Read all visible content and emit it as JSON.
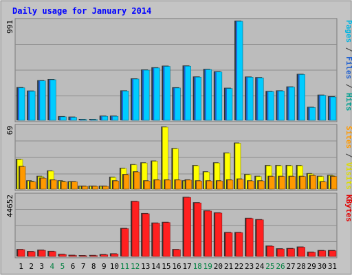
{
  "chart_data": {
    "type": "bar",
    "title": "Daily usage for January 2014",
    "categories": [
      "1",
      "2",
      "3",
      "4",
      "5",
      "6",
      "7",
      "8",
      "9",
      "10",
      "11",
      "12",
      "13",
      "14",
      "15",
      "16",
      "17",
      "18",
      "19",
      "20",
      "21",
      "22",
      "23",
      "24",
      "25",
      "26",
      "27",
      "28",
      "29",
      "30",
      "31"
    ],
    "weekend_days": [
      "4",
      "5",
      "11",
      "12",
      "18",
      "19",
      "25",
      "26"
    ],
    "panels": [
      {
        "id": "hits",
        "max_label": "991",
        "ymax": 991,
        "right_label_parts": [
          {
            "text": "Pages",
            "color": "#00b4e0"
          },
          {
            "text": " / ",
            "color": "#333333"
          },
          {
            "text": "Files",
            "color": "#2060d0"
          },
          {
            "text": " / ",
            "color": "#333333"
          },
          {
            "text": "Hits",
            "color": "#00a090"
          }
        ],
        "series": [
          {
            "name": "Hits",
            "color": "#00a090",
            "values": [
              325,
              291,
              395,
              406,
              35,
              30,
              5,
              5,
              40,
              40,
              293,
              413,
              502,
              524,
              540,
              324,
              542,
              432,
              508,
              484,
              319,
              991,
              431,
              425,
              287,
              293,
              332,
              458,
              128,
              250,
              234
            ]
          },
          {
            "name": "Files",
            "color": "#2060d0",
            "values": [
              325,
              291,
              395,
              406,
              35,
              30,
              5,
              5,
              40,
              40,
              293,
              413,
              502,
              524,
              540,
              324,
              542,
              432,
              508,
              484,
              319,
              991,
              431,
              425,
              287,
              293,
              332,
              458,
              128,
              250,
              234
            ]
          },
          {
            "name": "Pages",
            "color": "#00ccff",
            "values": [
              325,
              291,
              395,
              406,
              35,
              30,
              5,
              5,
              40,
              40,
              293,
              413,
              502,
              524,
              540,
              324,
              542,
              432,
              508,
              484,
              319,
              991,
              431,
              425,
              287,
              293,
              332,
              458,
              128,
              250,
              234
            ]
          }
        ]
      },
      {
        "id": "visits",
        "max_label": "69",
        "ymax": 69,
        "right_label_parts": [
          {
            "text": "Sites",
            "color": "#ff9900"
          },
          {
            "text": " / ",
            "color": "#333333"
          },
          {
            "text": "Visits",
            "color": "#dddd00"
          }
        ],
        "series": [
          {
            "name": "Visits",
            "color": "#ffff00",
            "values": [
              33,
              9,
              14,
              20,
              9,
              8,
              3,
              3,
              3,
              13,
              23,
              27,
              29,
              31,
              69,
              45,
              9,
              26,
              19,
              29,
              40,
              51,
              16,
              14,
              26,
              26,
              26,
              26,
              17,
              14,
              15
            ]
          },
          {
            "name": "Sites",
            "color": "#ff9900",
            "values": [
              25,
              8,
              12,
              10,
              8,
              8,
              3,
              3,
              3,
              9,
              16,
              19,
              9,
              10,
              10,
              10,
              10,
              9,
              9,
              9,
              10,
              11,
              9,
              9,
              14,
              14,
              14,
              14,
              15,
              8,
              14
            ]
          }
        ]
      },
      {
        "id": "kbytes",
        "max_label": "44652",
        "ymax": 44652,
        "right_label_parts": [
          {
            "text": "KBytes",
            "color": "#e00000"
          }
        ],
        "series": [
          {
            "name": "KBytes",
            "color": "#ff2020",
            "values": [
              5000,
              3500,
              4500,
              3600,
              1400,
              700,
              500,
              600,
              1200,
              1800,
              20500,
              40500,
              31500,
              24500,
              25000,
              5000,
              43500,
              39500,
              33500,
              32000,
              17500,
              17500,
              28000,
              27000,
              7500,
              5500,
              5700,
              6800,
              3000,
              4200,
              4200
            ]
          }
        ]
      }
    ]
  }
}
